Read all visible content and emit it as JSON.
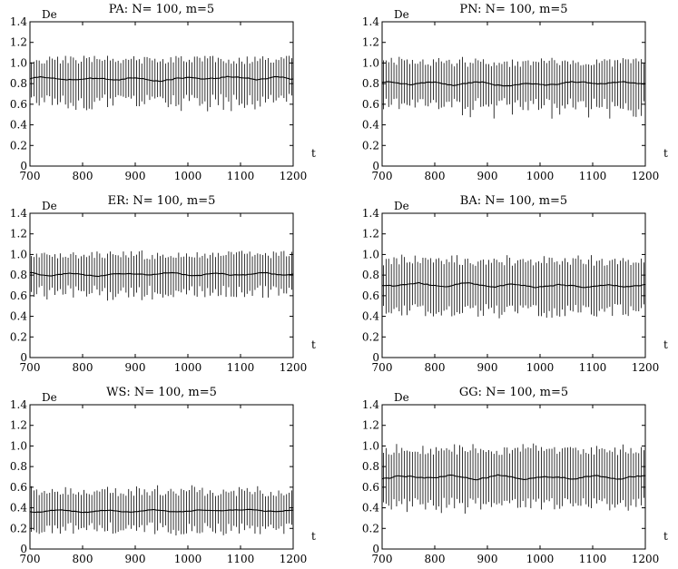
{
  "chart_data": [
    {
      "type": "line",
      "title": "PA:  N= 100, m=5",
      "ylabel": "De",
      "xlabel": "t",
      "xlim": [
        700,
        1200
      ],
      "ylim": [
        0,
        1.4
      ],
      "xticks": [
        "700",
        "800",
        "900",
        "1000",
        "1100",
        "1200"
      ],
      "yticks": [
        "0",
        "0.2",
        "0.4",
        "0.6",
        "0.8",
        "1.0",
        "1.2",
        "1.4"
      ],
      "grid": false,
      "series": [
        {
          "kind": "mean",
          "x_range": [
            700,
            1200
          ],
          "points": 101,
          "mean": 0.85,
          "amplitude": 0.025
        },
        {
          "kind": "error-bars",
          "x_range": [
            700,
            1200
          ],
          "count": 100,
          "low": 0.64,
          "high": 1.03,
          "min": 0.53,
          "max": 1.08
        }
      ]
    },
    {
      "type": "line",
      "title": "PN:  N= 100, m=5",
      "ylabel": "De",
      "xlabel": "t",
      "xlim": [
        700,
        1200
      ],
      "ylim": [
        0,
        1.4
      ],
      "xticks": [
        "700",
        "800",
        "900",
        "1000",
        "1100",
        "1200"
      ],
      "yticks": [
        "0",
        "0.2",
        "0.4",
        "0.6",
        "0.8",
        "1.0",
        "1.2",
        "1.4"
      ],
      "grid": false,
      "series": [
        {
          "kind": "mean",
          "x_range": [
            700,
            1200
          ],
          "points": 101,
          "mean": 0.8,
          "amplitude": 0.025
        },
        {
          "kind": "error-bars",
          "x_range": [
            700,
            1200
          ],
          "count": 100,
          "low": 0.6,
          "high": 1.0,
          "min": 0.45,
          "max": 1.06
        }
      ]
    },
    {
      "type": "line",
      "title": "ER:  N= 100, m=5",
      "ylabel": "De",
      "xlabel": "t",
      "xlim": [
        700,
        1200
      ],
      "ylim": [
        0,
        1.4
      ],
      "xticks": [
        "700",
        "800",
        "900",
        "1000",
        "1100",
        "1200"
      ],
      "yticks": [
        "0",
        "0.2",
        "0.4",
        "0.6",
        "0.8",
        "1.0",
        "1.2",
        "1.4"
      ],
      "grid": false,
      "series": [
        {
          "kind": "mean",
          "x_range": [
            700,
            1200
          ],
          "points": 101,
          "mean": 0.81,
          "amplitude": 0.02
        },
        {
          "kind": "error-bars",
          "x_range": [
            700,
            1200
          ],
          "count": 100,
          "low": 0.64,
          "high": 0.99,
          "min": 0.55,
          "max": 1.04
        }
      ]
    },
    {
      "type": "line",
      "title": "BA:  N= 100, m=5",
      "ylabel": "De",
      "xlabel": "t",
      "xlim": [
        700,
        1200
      ],
      "ylim": [
        0,
        1.4
      ],
      "xticks": [
        "700",
        "800",
        "900",
        "1000",
        "1100",
        "1200"
      ],
      "yticks": [
        "0",
        "0.2",
        "0.4",
        "0.6",
        "0.8",
        "1.0",
        "1.2",
        "1.4"
      ],
      "grid": false,
      "series": [
        {
          "kind": "mean",
          "x_range": [
            700,
            1200
          ],
          "points": 101,
          "mean": 0.7,
          "amplitude": 0.025
        },
        {
          "kind": "error-bars",
          "x_range": [
            700,
            1200
          ],
          "count": 100,
          "low": 0.46,
          "high": 0.93,
          "min": 0.38,
          "max": 1.0
        }
      ]
    },
    {
      "type": "line",
      "title": "WS:  N= 100, m=5",
      "ylabel": "De",
      "xlabel": "t",
      "xlim": [
        700,
        1200
      ],
      "ylim": [
        0,
        1.4
      ],
      "xticks": [
        "700",
        "800",
        "900",
        "1000",
        "1100",
        "1200"
      ],
      "yticks": [
        "0",
        "0.2",
        "0.4",
        "0.6",
        "0.8",
        "1.0",
        "1.2",
        "1.4"
      ],
      "grid": false,
      "series": [
        {
          "kind": "mean",
          "x_range": [
            700,
            1200
          ],
          "points": 101,
          "mean": 0.37,
          "amplitude": 0.015
        },
        {
          "kind": "error-bars",
          "x_range": [
            700,
            1200
          ],
          "count": 100,
          "low": 0.2,
          "high": 0.55,
          "min": 0.13,
          "max": 0.62
        }
      ]
    },
    {
      "type": "line",
      "title": "GG:  N= 100, m=5",
      "ylabel": "De",
      "xlabel": "t",
      "xlim": [
        700,
        1200
      ],
      "ylim": [
        0,
        1.4
      ],
      "xticks": [
        "700",
        "800",
        "900",
        "1000",
        "1100",
        "1200"
      ],
      "yticks": [
        "0",
        "0.2",
        "0.4",
        "0.6",
        "0.8",
        "1.0",
        "1.2",
        "1.4"
      ],
      "grid": false,
      "series": [
        {
          "kind": "mean",
          "x_range": [
            700,
            1200
          ],
          "points": 101,
          "mean": 0.7,
          "amplitude": 0.03
        },
        {
          "kind": "error-bars",
          "x_range": [
            700,
            1200
          ],
          "count": 100,
          "low": 0.44,
          "high": 0.95,
          "min": 0.34,
          "max": 1.03
        }
      ]
    }
  ]
}
